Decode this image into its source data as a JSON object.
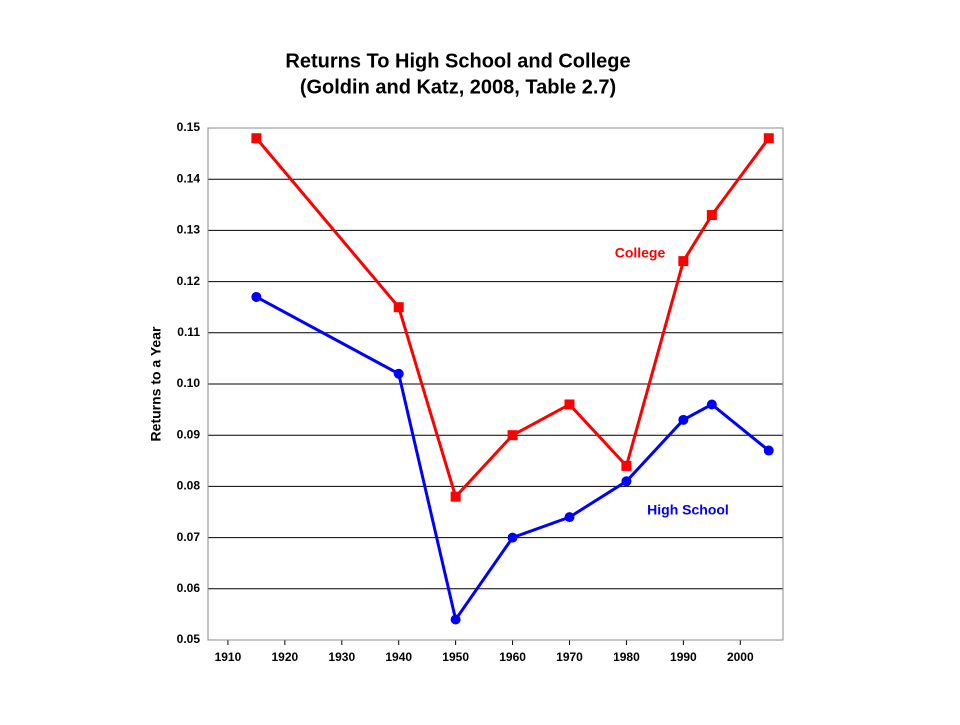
{
  "chart_data": {
    "type": "line",
    "title": "Returns To High School and College",
    "subtitle": "(Goldin and Katz, 2008, Table 2.7)",
    "y_label": "Returns to a Year",
    "x": [
      1915,
      1940,
      1950,
      1960,
      1970,
      1980,
      1990,
      1995,
      2005
    ],
    "series": [
      {
        "name": "College",
        "color": "#ff0000",
        "marker": "square",
        "values": [
          0.148,
          0.115,
          0.078,
          0.09,
          0.096,
          0.084,
          0.124,
          0.133,
          0.148
        ]
      },
      {
        "name": "High School",
        "color": "#0000ff",
        "marker": "circle",
        "values": [
          0.117,
          0.102,
          0.054,
          0.07,
          0.074,
          0.081,
          0.093,
          0.096,
          0.087
        ]
      }
    ],
    "xlim": [
      1906.5,
      2007.5
    ],
    "xticks": [
      1910,
      1920,
      1930,
      1940,
      1950,
      1960,
      1970,
      1980,
      1990,
      2000
    ],
    "ylim": [
      0.05,
      0.15
    ],
    "yticks": [
      0.05,
      0.06,
      0.07,
      0.08,
      0.09,
      {
        "value": 0.1,
        "label": "0.10"
      },
      0.11,
      0.12,
      0.13,
      0.14,
      0.15
    ],
    "grid": true
  }
}
